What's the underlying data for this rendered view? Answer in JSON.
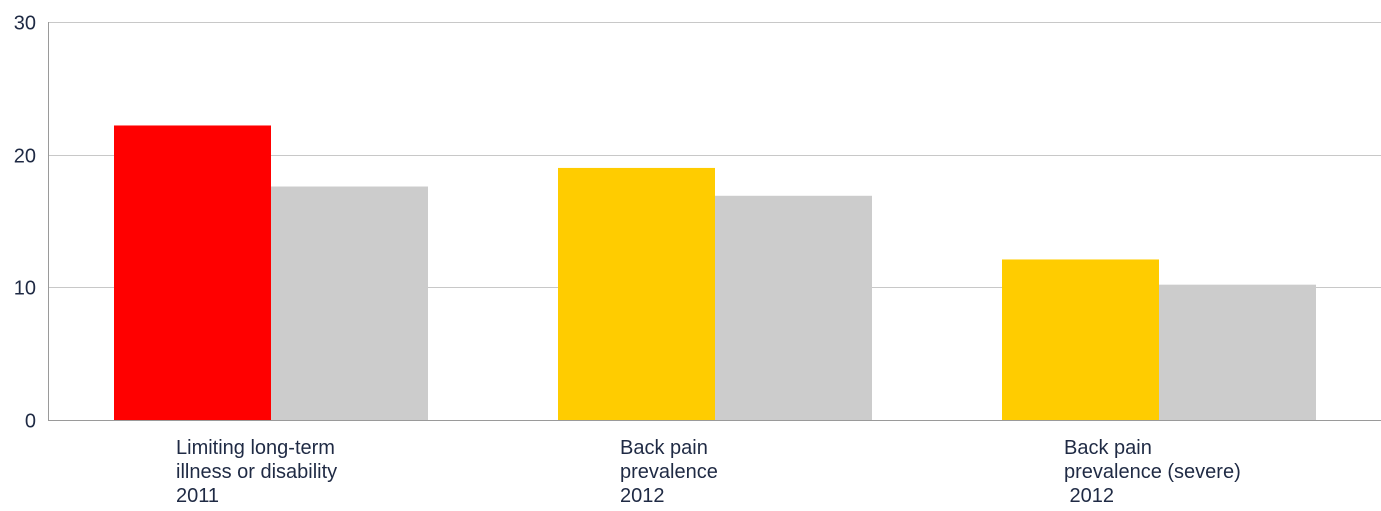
{
  "chart_data": {
    "type": "bar",
    "ylim": [
      0,
      30
    ],
    "yticks": [
      "0",
      "10",
      "20",
      "30"
    ],
    "grid": true,
    "categories": [
      {
        "lines": [
          "Limiting long-term",
          "illness or disability",
          "2011"
        ],
        "primary_color": "#ff0000"
      },
      {
        "lines": [
          "Back pain",
          "prevalence",
          "2012"
        ],
        "primary_color": "#ffcc00"
      },
      {
        "lines": [
          "Back pain",
          "prevalence (severe)",
          " 2012"
        ],
        "primary_color": "#ffcc00"
      }
    ],
    "series": [
      {
        "values": [
          22.2,
          19.0,
          12.1
        ]
      },
      {
        "values": [
          17.6,
          16.9,
          10.2
        ],
        "color": "#cccccc"
      }
    ]
  }
}
